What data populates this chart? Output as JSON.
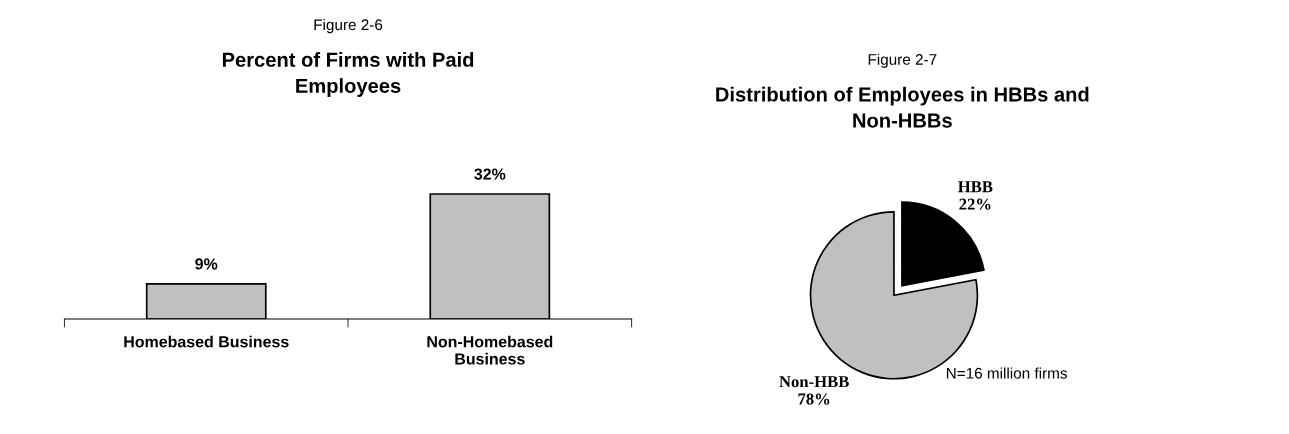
{
  "chart_data": [
    {
      "type": "bar",
      "subtitle": "Figure 2-6",
      "title": "Percent of Firms with Paid\nEmployees",
      "categories": [
        "Homebased Business",
        "Non-Homebased\nBusiness"
      ],
      "values": [
        9,
        32
      ],
      "value_labels": [
        "9%",
        "32%"
      ],
      "color": "#c0c0c0",
      "grid": false,
      "legend": false
    },
    {
      "type": "pie",
      "subtitle": "Figure 2-7",
      "title": "Distribution of Employees in HBBs and\nNon-HBBs",
      "categories": [
        "HBB",
        "Non-HBB"
      ],
      "values": [
        22,
        78
      ],
      "value_labels": [
        "22%",
        "78%"
      ],
      "colors": [
        "#000000",
        "#c0c0c0"
      ],
      "annotations": [
        "N=16 million firms"
      ],
      "legend": false
    }
  ]
}
